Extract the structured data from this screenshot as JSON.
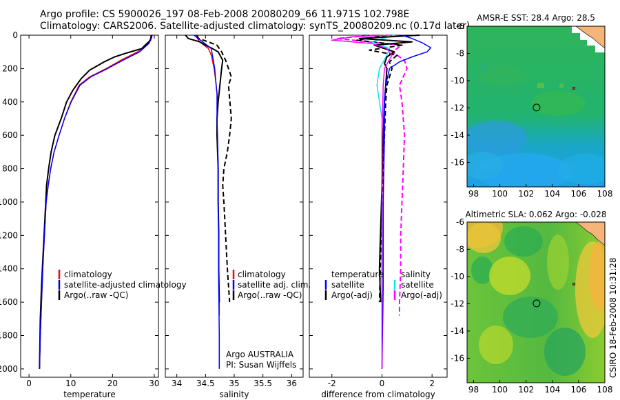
{
  "header": {
    "title_line1": "Argo profile: CS 5900026_197 08-Feb-2008 20080209_66 11.971S 102.798E",
    "title_line2": "Climatology: CARS2006. Satellite-adjusted climatology: synTS_20080209.nc (0.17d later)"
  },
  "side_label": "CSIRO 18-Feb-2008 10:31:28",
  "colors": {
    "clim": "#ff0000",
    "sat": "#0000ff",
    "argo": "#000000",
    "salt_diff": "#ff00ff",
    "salt_sat": "#00e5ff",
    "land": "#f5b47a"
  },
  "chart_data": [
    {
      "id": "temperature",
      "type": "line",
      "xlabel": "temperature",
      "xlim": [
        -2,
        31
      ],
      "ylim": [
        2050,
        0
      ],
      "xticks": [
        "0",
        "10",
        "20",
        "30"
      ],
      "xtick_values": [
        0,
        10,
        20,
        30
      ],
      "yticks": [
        "0",
        "200",
        "400",
        "600",
        "800",
        "1000",
        "1200",
        "1400",
        "1600",
        "1800",
        "2000"
      ],
      "ytick_values": [
        0,
        200,
        400,
        600,
        800,
        1000,
        1200,
        1400,
        1600,
        1800,
        2000
      ],
      "legend": [
        {
          "label": "climatology",
          "color": "#ff0000"
        },
        {
          "label": "satellite-adjusted climatology",
          "color": "#0000ff"
        },
        {
          "label": "Argo(..raw -QC)",
          "color": "#000000"
        }
      ],
      "series": [
        {
          "name": "climatology",
          "color": "#ff0000",
          "dash": "",
          "width": 1.5,
          "x": [
            29.2,
            29.1,
            28.5,
            26.0,
            22.0,
            18.5,
            14.5,
            12.0,
            10.0,
            8.5,
            7.2,
            6.0,
            5.2,
            4.6,
            4.1,
            3.7,
            3.3,
            3.0,
            2.7,
            2.5
          ],
          "y": [
            0,
            20,
            50,
            100,
            150,
            200,
            250,
            300,
            400,
            500,
            600,
            700,
            800,
            900,
            1000,
            1200,
            1400,
            1600,
            1800,
            2000
          ]
        },
        {
          "name": "Argo(..raw -QC)",
          "color": "#000000",
          "dash": "",
          "width": 2,
          "x": [
            29.3,
            29.1,
            27.8,
            27.0,
            25.0,
            23.0,
            20.5,
            18.0,
            14.5,
            12.5,
            10.5,
            9.0,
            7.7,
            6.2,
            5.3,
            4.7,
            4.2,
            3.8,
            3.4,
            3.0,
            2.7,
            2.5
          ],
          "y": [
            0,
            30,
            60,
            80,
            95,
            110,
            130,
            160,
            210,
            260,
            330,
            400,
            500,
            600,
            700,
            800,
            900,
            1100,
            1300,
            1500,
            1700,
            2000
          ]
        },
        {
          "name": "satellite-adjusted climatology",
          "color": "#0000ff",
          "dash": "",
          "width": 1.5,
          "x": [
            29.5,
            29.3,
            28.7,
            26.5,
            22.5,
            18.8,
            14.8,
            12.2,
            10.1,
            8.5,
            7.2,
            6.0,
            5.2,
            4.6,
            4.1,
            3.7,
            3.3,
            3.0,
            2.7,
            2.5
          ],
          "y": [
            0,
            20,
            50,
            100,
            150,
            200,
            250,
            300,
            400,
            500,
            600,
            700,
            800,
            900,
            1000,
            1200,
            1400,
            1600,
            1800,
            2000
          ]
        }
      ]
    },
    {
      "id": "salinity",
      "type": "line",
      "xlabel": "salinity",
      "xlim": [
        33.8,
        36.2
      ],
      "ylim": [
        2050,
        0
      ],
      "xticks": [
        "34",
        "34.5",
        "35",
        "35.5",
        "36"
      ],
      "xtick_values": [
        34,
        34.5,
        35,
        35.5,
        36
      ],
      "legend": [
        {
          "label": "climatology",
          "color": "#ff0000"
        },
        {
          "label": "satellite adj. clim.",
          "color": "#0000ff"
        },
        {
          "label": "Argo(..raw -QC)",
          "color": "#000000"
        }
      ],
      "annotation": [
        "Argo AUSTRALIA",
        "PI: Susan Wijffels"
      ],
      "series": [
        {
          "name": "Argo(..raw -QC) dashed",
          "color": "#000000",
          "dash": "7,4",
          "width": 2,
          "x": [
            34.35,
            34.38,
            34.55,
            34.7,
            34.78,
            34.85,
            34.9,
            34.95,
            34.9,
            34.95,
            34.92,
            34.88,
            34.82,
            34.8,
            34.82,
            34.85,
            34.88,
            34.9,
            34.92
          ],
          "y": [
            0,
            20,
            40,
            60,
            100,
            150,
            200,
            250,
            300,
            500,
            600,
            700,
            800,
            900,
            1000,
            1200,
            1400,
            1500,
            1600
          ]
        },
        {
          "name": "climatology",
          "color": "#ff0000",
          "dash": "",
          "width": 1.5,
          "x": [
            34.32,
            34.4,
            34.55,
            34.6,
            34.65,
            34.68,
            34.7,
            34.72,
            34.7,
            34.7,
            34.72,
            34.72,
            34.73,
            34.73,
            34.74,
            34.74
          ],
          "y": [
            0,
            40,
            80,
            120,
            200,
            280,
            350,
            400,
            500,
            600,
            800,
            1000,
            1200,
            1400,
            1600,
            1680
          ]
        },
        {
          "name": "Argo(..raw -QC)",
          "color": "#000000",
          "dash": "",
          "width": 2,
          "x": [
            34.15,
            34.2,
            34.4,
            34.5,
            34.62,
            34.72,
            34.8,
            34.78,
            34.75,
            34.72,
            34.7,
            34.7,
            34.72,
            34.72,
            34.73,
            34.73,
            34.74
          ],
          "y": [
            0,
            20,
            40,
            60,
            80,
            100,
            150,
            200,
            300,
            400,
            500,
            600,
            800,
            1000,
            1200,
            1400,
            1600
          ]
        },
        {
          "name": "satellite adj. clim.",
          "color": "#0000ff",
          "dash": "",
          "width": 1.5,
          "x": [
            34.3,
            34.45,
            34.6,
            34.62,
            34.64,
            34.66,
            34.68,
            34.7,
            34.7,
            34.7,
            34.71,
            34.72,
            34.72,
            34.73,
            34.73,
            34.74,
            34.74
          ],
          "y": [
            0,
            40,
            80,
            120,
            160,
            200,
            280,
            350,
            400,
            500,
            600,
            800,
            1000,
            1200,
            1500,
            1800,
            2000
          ]
        }
      ]
    },
    {
      "id": "difference",
      "type": "line",
      "xlabel": "difference from climatology",
      "xlim": [
        -2.9,
        2.6
      ],
      "ylim": [
        2050,
        0
      ],
      "xticks": [
        "-2",
        "0",
        "2"
      ],
      "xtick_values": [
        -2,
        0,
        2
      ],
      "legend_left": [
        {
          "label": "temperature",
          "color": "#000000"
        },
        {
          "label": "satellite",
          "color": "#0000ff"
        },
        {
          "label": "Argo(-adj)",
          "color": "#000000"
        }
      ],
      "legend_right": [
        {
          "label": "salinity",
          "color": "#ff00ff"
        },
        {
          "label": "satellite",
          "color": "#00e5ff"
        },
        {
          "label": "Argo(-adj)",
          "color": "#ff00ff"
        }
      ],
      "series": [
        {
          "name": "salinity Argo(-adj)",
          "color": "#ff00ff",
          "dash": "7,4",
          "width": 2,
          "x": [
            -0.3,
            -1.8,
            -0.5,
            0.8,
            0.4,
            0.9,
            1.0,
            0.7,
            0.8,
            0.9,
            0.85,
            0.8,
            0.75,
            0.75,
            0.7,
            0.7
          ],
          "y": [
            0,
            20,
            40,
            60,
            100,
            150,
            200,
            300,
            400,
            600,
            800,
            1000,
            1200,
            1400,
            1600,
            1680
          ]
        },
        {
          "name": "temperature Argo(-adj)",
          "color": "#000000",
          "dash": "7,4",
          "width": 2,
          "x": [
            0.2,
            -1.0,
            0.8,
            -0.5,
            0.6,
            0.3,
            0.4,
            0.2,
            0.15,
            0.1,
            0.05,
            0.0,
            -0.05,
            -0.1
          ],
          "y": [
            0,
            30,
            60,
            90,
            120,
            160,
            200,
            300,
            400,
            600,
            800,
            1000,
            1300,
            1600
          ]
        },
        {
          "name": "salinity satellite",
          "color": "#00e5ff",
          "dash": "",
          "width": 1.5,
          "x": [
            0.5,
            -0.4,
            0.3,
            0.2,
            -0.1,
            -0.2,
            0.0,
            0.0,
            0.0,
            0.0,
            0.0,
            0.0
          ],
          "y": [
            0,
            40,
            80,
            120,
            200,
            300,
            500,
            800,
            1200,
            1600,
            1800,
            2000
          ]
        },
        {
          "name": "temperature",
          "color": "#000000",
          "dash": "",
          "width": 2,
          "x": [
            1.5,
            -0.9,
            1.2,
            -0.3,
            0.5,
            0.2,
            0.1,
            0.2,
            0.15,
            0.1,
            0.05,
            0.0,
            -0.1,
            -0.05
          ],
          "y": [
            0,
            20,
            40,
            60,
            100,
            130,
            170,
            200,
            300,
            400,
            600,
            900,
            1400,
            1600
          ]
        },
        {
          "name": "satellite",
          "color": "#0000ff",
          "dash": "",
          "width": 1.5,
          "x": [
            0.8,
            1.2,
            1.6,
            1.95,
            1.8,
            1.2,
            0.7,
            0.3,
            0.15,
            0.1,
            0.1,
            0.05,
            0.05,
            0.0
          ],
          "y": [
            0,
            20,
            45,
            75,
            100,
            130,
            160,
            200,
            300,
            400,
            600,
            1000,
            1500,
            2000
          ]
        },
        {
          "name": "salinity",
          "color": "#ff00ff",
          "dash": "",
          "width": 1.5,
          "x": [
            0.3,
            -1.2,
            -2.0,
            -0.4,
            0.2,
            0.4,
            0.1,
            0.05,
            0.0,
            0.0,
            0.0,
            0.0
          ],
          "y": [
            0,
            10,
            30,
            50,
            80,
            120,
            200,
            300,
            600,
            1000,
            1600,
            2000
          ]
        }
      ]
    },
    {
      "id": "sst_map",
      "type": "heatmap",
      "title": "AMSR-E SST: 28.4 Argo: 28.5",
      "xlim": [
        97.5,
        108
      ],
      "ylim": [
        -17.8,
        -6
      ],
      "xticks": [
        "98",
        "100",
        "102",
        "104",
        "106",
        "108"
      ],
      "xtick_values": [
        98,
        100,
        102,
        104,
        106,
        108
      ],
      "yticks": [
        "-6",
        "-8",
        "-10",
        "-12",
        "-14",
        "-16"
      ],
      "ytick_values": [
        -6,
        -8,
        -10,
        -12,
        -14,
        -16
      ],
      "marker": {
        "lon": 102.798,
        "lat": -11.971
      }
    },
    {
      "id": "sla_map",
      "type": "heatmap",
      "title": "Altimetric SLA: 0.062 Argo: -0.028",
      "xlim": [
        97.5,
        108
      ],
      "ylim": [
        -17.8,
        -6
      ],
      "xticks": [
        "98",
        "100",
        "102",
        "104",
        "106",
        "108"
      ],
      "xtick_values": [
        98,
        100,
        102,
        104,
        106,
        108
      ],
      "yticks": [
        "-6",
        "-8",
        "-10",
        "-12",
        "-14",
        "-16"
      ],
      "ytick_values": [
        -6,
        -8,
        -10,
        -12,
        -14,
        -16
      ],
      "marker": {
        "lon": 102.798,
        "lat": -11.971
      }
    }
  ]
}
